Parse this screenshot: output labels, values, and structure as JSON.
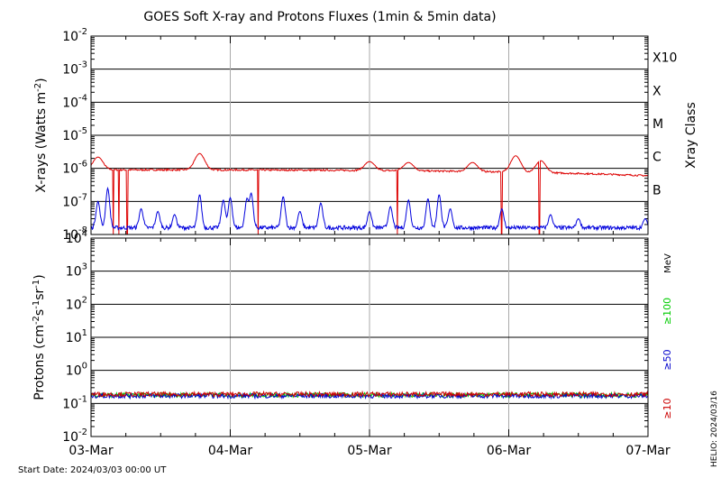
{
  "chart_data": [
    {
      "type": "line",
      "title": "GOES Soft X-ray and Protons Fluxes   (1min & 5min data)",
      "ylabel": "X-rays (Watts m",
      "ylabel_sup": "-2",
      "ylabel_close": ")",
      "yscale": "log",
      "ylim": [
        1e-08,
        0.01
      ],
      "y_ticks": [
        {
          "base": "10",
          "exp": "-2"
        },
        {
          "base": "10",
          "exp": "-3"
        },
        {
          "base": "10",
          "exp": "-4"
        },
        {
          "base": "10",
          "exp": "-5"
        },
        {
          "base": "10",
          "exp": "-6"
        },
        {
          "base": "10",
          "exp": "-7"
        },
        {
          "base": "10",
          "exp": "-8"
        }
      ],
      "right_axis_label": "Xray Class",
      "class_labels": [
        "X10",
        "X",
        "M",
        "C",
        "B"
      ],
      "series": [
        {
          "color": "#dd0000",
          "baseline": 9e-07,
          "peaks": [
            {
              "x": 0.05,
              "y": 2.2e-06
            },
            {
              "x": 0.78,
              "y": 2.8e-06
            },
            {
              "x": 2.0,
              "y": 1.6e-06
            },
            {
              "x": 2.28,
              "y": 1.5e-06
            },
            {
              "x": 2.74,
              "y": 1.5e-06
            },
            {
              "x": 3.05,
              "y": 2.4e-06
            },
            {
              "x": 3.23,
              "y": 1.7e-06
            }
          ],
          "dropouts": [
            0.16,
            0.2,
            0.26,
            1.2,
            2.2,
            2.95,
            3.22
          ],
          "end_value": 6e-07
        },
        {
          "color": "#0000dd",
          "baseline": 1.6e-08,
          "peaks": [
            {
              "x": 0.05,
              "y": 1e-07
            },
            {
              "x": 0.12,
              "y": 2.5e-07
            },
            {
              "x": 0.36,
              "y": 6e-08
            },
            {
              "x": 0.48,
              "y": 5e-08
            },
            {
              "x": 0.6,
              "y": 4e-08
            },
            {
              "x": 0.78,
              "y": 1.6e-07
            },
            {
              "x": 0.95,
              "y": 1.1e-07
            },
            {
              "x": 1.0,
              "y": 1.3e-07
            },
            {
              "x": 1.12,
              "y": 1.2e-07
            },
            {
              "x": 1.15,
              "y": 1.8e-07
            },
            {
              "x": 1.38,
              "y": 1.4e-07
            },
            {
              "x": 1.5,
              "y": 5e-08
            },
            {
              "x": 1.65,
              "y": 9e-08
            },
            {
              "x": 2.0,
              "y": 5e-08
            },
            {
              "x": 2.15,
              "y": 7e-08
            },
            {
              "x": 2.28,
              "y": 1.1e-07
            },
            {
              "x": 2.42,
              "y": 1.2e-07
            },
            {
              "x": 2.5,
              "y": 1.6e-07
            },
            {
              "x": 2.58,
              "y": 6e-08
            },
            {
              "x": 2.95,
              "y": 6e-08
            },
            {
              "x": 3.3,
              "y": 4e-08
            },
            {
              "x": 3.5,
              "y": 3e-08
            },
            {
              "x": 3.98,
              "y": 3e-08
            }
          ]
        }
      ]
    },
    {
      "type": "line",
      "ylabel": "Protons (cm",
      "ylabel_mid": "s",
      "ylabel_mid2": "sr",
      "ylabel_close": ")",
      "yscale": "log",
      "ylim": [
        0.01,
        10000
      ],
      "y_ticks": [
        {
          "base": "10",
          "exp": "4"
        },
        {
          "base": "10",
          "exp": "3"
        },
        {
          "base": "10",
          "exp": "2"
        },
        {
          "base": "10",
          "exp": "1"
        },
        {
          "base": "10",
          "exp": "0"
        },
        {
          "base": "10",
          "exp": "-1"
        },
        {
          "base": "10",
          "exp": "-2"
        }
      ],
      "threshold": 10,
      "energy_unit": "MeV",
      "series": [
        {
          "name": "≥100",
          "color": "#00cc00",
          "value": 0.18
        },
        {
          "name": "≥50",
          "color": "#0000cc",
          "value": 0.17
        },
        {
          "name": "≥10",
          "color": "#cc0000",
          "value": 0.19
        }
      ]
    }
  ],
  "x_axis": {
    "ticks": [
      "03-Mar",
      "04-Mar",
      "05-Mar",
      "06-Mar",
      "07-Mar"
    ],
    "range_days": [
      0,
      4
    ],
    "minor_per_day": 4
  },
  "footer": {
    "start_date": "Start Date: 2024/03/03 00:00 UT",
    "credit": "HELIO: 2024/03/16"
  },
  "colors": {
    "axis": "#000000",
    "grid_day": "#aaaaaa",
    "xray_red": "#dd0000",
    "xray_blue": "#0000dd"
  }
}
